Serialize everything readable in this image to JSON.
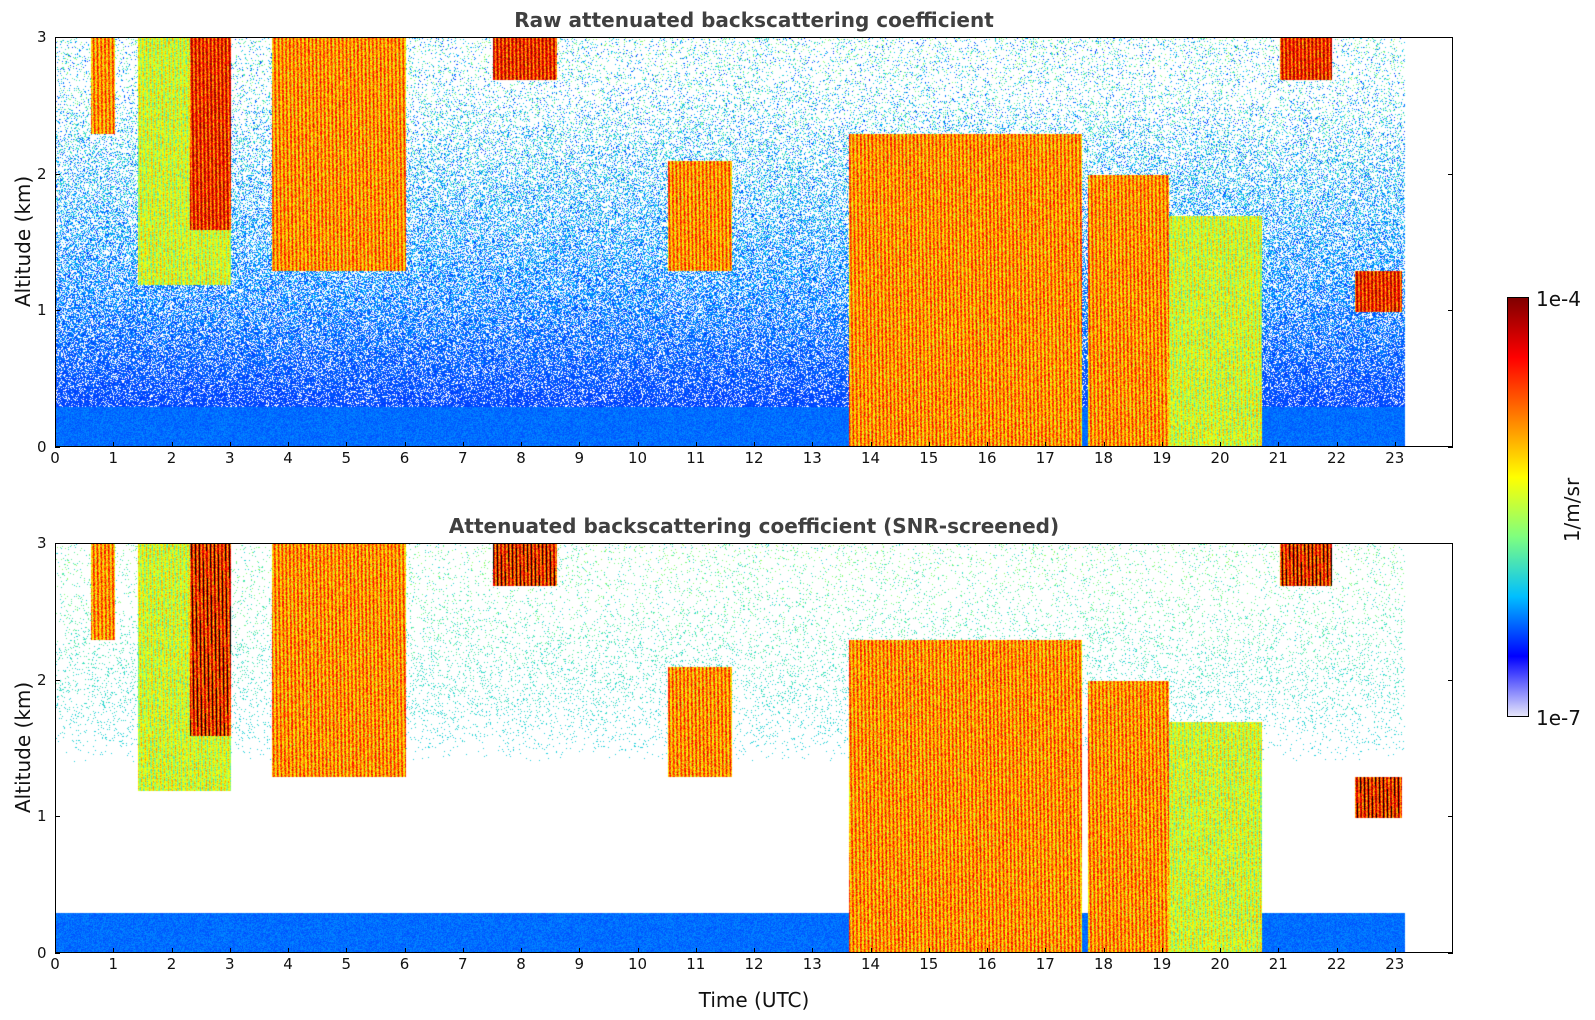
{
  "chart_data": [
    {
      "type": "heatmap",
      "title": "Raw attenuated backscattering coefficient",
      "xlabel": "",
      "ylabel": "Altitude (km)",
      "xlim": [
        0,
        24
      ],
      "ylim": [
        0,
        3
      ],
      "x_ticks": [
        "0",
        "1",
        "2",
        "3",
        "4",
        "5",
        "6",
        "7",
        "8",
        "9",
        "10",
        "11",
        "12",
        "13",
        "14",
        "15",
        "16",
        "17",
        "18",
        "19",
        "20",
        "21",
        "22",
        "23"
      ],
      "y_ticks": [
        "0",
        "1",
        "2",
        "3"
      ],
      "screened": false,
      "cloud_events": [
        {
          "t_start": 0.6,
          "t_end": 1.0,
          "alt_top": 3.0,
          "alt_bottom": 2.3,
          "level": "high"
        },
        {
          "t_start": 1.4,
          "t_end": 3.0,
          "alt_top": 3.0,
          "alt_bottom": 1.2,
          "level": "medium"
        },
        {
          "t_start": 2.3,
          "t_end": 3.0,
          "alt_top": 3.0,
          "alt_bottom": 1.6,
          "level": "very high"
        },
        {
          "t_start": 3.7,
          "t_end": 6.0,
          "alt_top": 3.0,
          "alt_bottom": 1.3,
          "level": "high"
        },
        {
          "t_start": 7.5,
          "t_end": 8.6,
          "alt_top": 3.0,
          "alt_bottom": 2.7,
          "level": "very high"
        },
        {
          "t_start": 10.5,
          "t_end": 11.6,
          "alt_top": 2.1,
          "alt_bottom": 1.3,
          "level": "high"
        },
        {
          "t_start": 13.6,
          "t_end": 17.6,
          "alt_top": 2.3,
          "alt_bottom": 0.0,
          "level": "high"
        },
        {
          "t_start": 17.7,
          "t_end": 19.1,
          "alt_top": 2.0,
          "alt_bottom": 0.0,
          "level": "high"
        },
        {
          "t_start": 19.1,
          "t_end": 20.7,
          "alt_top": 1.7,
          "alt_bottom": 0.0,
          "level": "medium"
        },
        {
          "t_start": 21.0,
          "t_end": 21.9,
          "alt_top": 3.0,
          "alt_bottom": 2.7,
          "level": "very high"
        },
        {
          "t_start": 22.3,
          "t_end": 23.1,
          "alt_top": 1.3,
          "alt_bottom": 1.0,
          "level": "very high"
        }
      ],
      "data_end_time": 23.15
    },
    {
      "type": "heatmap",
      "title": "Attenuated backscattering coefficient (SNR-screened)",
      "xlabel": "Time (UTC)",
      "ylabel": "Altitude (km)",
      "xlim": [
        0,
        24
      ],
      "ylim": [
        0,
        3
      ],
      "x_ticks": [
        "0",
        "1",
        "2",
        "3",
        "4",
        "5",
        "6",
        "7",
        "8",
        "9",
        "10",
        "11",
        "12",
        "13",
        "14",
        "15",
        "16",
        "17",
        "18",
        "19",
        "20",
        "21",
        "22",
        "23"
      ],
      "y_ticks": [
        "0",
        "1",
        "2",
        "3"
      ],
      "screened": true,
      "data_end_time": 23.15
    }
  ],
  "colorbar": {
    "label": "1/m/sr",
    "max_label": "1e-4",
    "min_label": "1e-7",
    "scale": "log",
    "range": [
      1e-07,
      0.0001
    ],
    "colormap": [
      "#e6e6fa",
      "#0000ff",
      "#00bfff",
      "#7fff7f",
      "#ffff00",
      "#ff7f00",
      "#ff0000",
      "#800000"
    ]
  }
}
